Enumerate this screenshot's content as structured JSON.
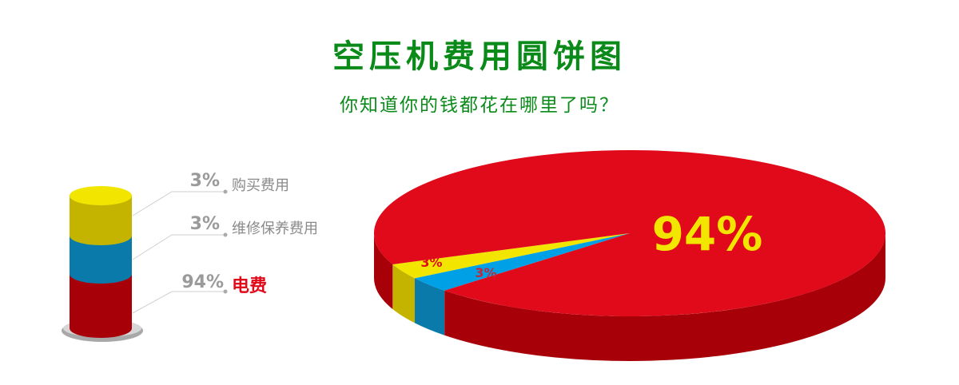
{
  "chart_data": {
    "type": "pie",
    "title": "空压机费用圆饼图",
    "subtitle": "你知道你的钱都花在哪里了吗？",
    "slices": [
      {
        "name": "购买费用",
        "value": 3,
        "label": "3%",
        "color": "#f2e600",
        "side_color": "#c4b400"
      },
      {
        "name": "维修保养费用",
        "value": 3,
        "label": "3%",
        "color": "#00a0e6",
        "side_color": "#0a7aaa"
      },
      {
        "name": "电费",
        "value": 94,
        "label": "94%",
        "color": "#e00a1a",
        "side_color": "#a80008"
      }
    ],
    "legend": {
      "placement": "left",
      "style": "stacked-cylinder"
    }
  }
}
